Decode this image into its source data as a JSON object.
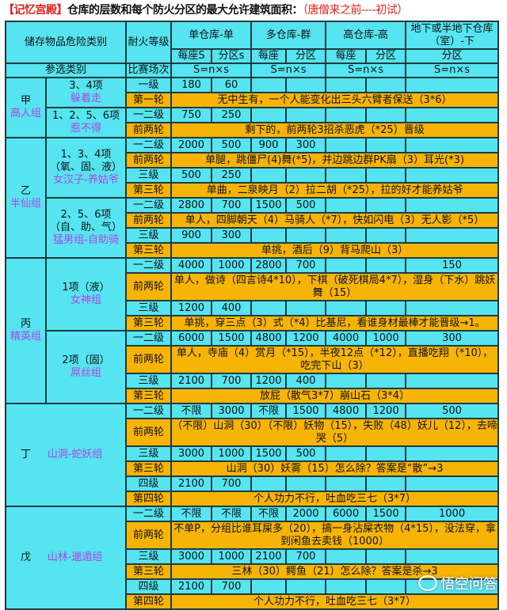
{
  "title": {
    "prefix": "【记忆宫殿】",
    "main": "仓库的层数和每个防火分区的最大允许建筑面积：",
    "suffix": "（唐僧来之前----初试）"
  },
  "header": {
    "category": "储存物品危险类别",
    "fire_rating": "耐火等级",
    "single": "单仓库-单",
    "multi": "多仓库-群",
    "high": "高仓库-高",
    "underground": "地下或半地下仓库（室）-下",
    "per_building_s": "每座S",
    "zone_s": "分区s",
    "per_building": "每座",
    "zone": "分区",
    "participants": "参选类别",
    "match": "比赛场次",
    "formula": "S=n×s"
  },
  "groups": [
    {
      "name": "甲",
      "alias": "高人组",
      "subgroups": [
        {
          "items": "3、4项",
          "alias": "躲着走",
          "rows": [
            {
              "level": "一级",
              "values": [
                "180",
                "60",
                "",
                "",
                "",
                "",
                ""
              ]
            },
            {
              "level": "第一轮",
              "note": "无中生有，一个人能变化出三头六臂者保送（3*6）"
            }
          ]
        },
        {
          "items": "1、2、5、6项",
          "alias": "惹不得",
          "rows": [
            {
              "level": "一二级",
              "values": [
                "750",
                "250",
                "",
                "",
                "",
                "",
                ""
              ]
            },
            {
              "level": "前两轮",
              "note": "剩下的，前两轮3招杀恶虎（*25）晋级"
            }
          ]
        }
      ]
    },
    {
      "name": "乙",
      "alias": "半仙组",
      "subgroups": [
        {
          "items": "1、3、4项\n（氧、固、液）",
          "alias": "女汉子-养姑爷",
          "rows": [
            {
              "level": "一二级",
              "values": [
                "2000",
                "500",
                "900",
                "300",
                "",
                "",
                ""
              ]
            },
            {
              "level": "前两轮",
              "note": "单腿，跳僵尸(4)舞(*5)，并边跳边群PK扇（3）耳光(*3)"
            },
            {
              "level": "三级",
              "values": [
                "500",
                "250",
                "",
                "",
                "",
                "",
                ""
              ]
            },
            {
              "level": "第三轮",
              "note": "单曲，二泉映月（2）拉二胡（*25），拉的好才能养姑爷"
            }
          ]
        },
        {
          "items": "2、5、6项\n（自、助、气）",
          "alias": "猛男组-自助骑",
          "rows": [
            {
              "level": "一二级",
              "values": [
                "2800",
                "700",
                "1500",
                "500",
                "",
                "",
                ""
              ]
            },
            {
              "level": "前两轮",
              "note": "单人，四脚朝天（4）马骑人（*7），快如闪电（3）无人影（*5）"
            },
            {
              "level": "三级",
              "values": [
                "900",
                "300",
                "",
                "",
                "",
                "",
                ""
              ]
            },
            {
              "level": "第三轮",
              "note": "单挑，酒后（9）背马爬山（3）"
            }
          ]
        }
      ]
    },
    {
      "name": "丙",
      "alias": "精英组",
      "subgroups": [
        {
          "items": "1项（液）",
          "alias": "女神组",
          "rows": [
            {
              "level": "一二级",
              "values": [
                "4000",
                "1000",
                "2800",
                "700",
                "",
                "",
                "150"
              ]
            },
            {
              "level": "前两轮",
              "note": "单人，做诗（四言诗4*10），下棋（破死棋局4*7），湿身（下水）跳妖舞（15）",
              "tall": true
            },
            {
              "level": "三级",
              "values": [
                "1200",
                "400",
                "",
                "",
                "",
                "",
                ""
              ]
            },
            {
              "level": "第三轮",
              "note": "单挑，穿三点（3）式（*4）比基尼，看谁身材最棒才能晋级→1。"
            }
          ]
        },
        {
          "items": "2项（固）",
          "alias": "屌丝组",
          "rows": [
            {
              "level": "一二级",
              "values": [
                "6000",
                "1500",
                "4800",
                "1200",
                "4000",
                "1000",
                "300"
              ]
            },
            {
              "level": "前两轮",
              "note": "单人，寺庙（4）赏月（*15），半夜12点（*12），直播吃翔（*10），吃完下山（3）",
              "tall": true
            },
            {
              "level": "三级",
              "values": [
                "2100",
                "700",
                "1200",
                "400",
                "",
                "",
                ""
              ]
            },
            {
              "level": "第三轮",
              "note": "放屁（散气3*7）崩山石（3*4）"
            }
          ]
        }
      ]
    },
    {
      "name": "丁",
      "alias": "山洞-蛇妖组",
      "merged": true,
      "subgroups": [
        {
          "rows": [
            {
              "level": "一二级",
              "values": [
                "不限",
                "3000",
                "不限",
                "1500",
                "4800",
                "1200",
                "500"
              ]
            },
            {
              "level": "前两轮",
              "note": "（不限）山洞（30）（不限）妖物（15），失败（48）妖儿（12），去啼哭（5）",
              "tall": true
            },
            {
              "level": "三级",
              "values": [
                "3000",
                "1000",
                "1500",
                "500",
                "",
                "",
                ""
              ]
            },
            {
              "level": "第三轮",
              "note": "山洞（30）妖雾（15）怎么除？答案是“散”→3"
            },
            {
              "level": "四级",
              "values": [
                "2100",
                "700",
                "",
                "",
                "",
                "",
                ""
              ]
            },
            {
              "level": "第四轮",
              "note": "个人功力不行，吐血吃三七（3*7）"
            }
          ]
        }
      ]
    },
    {
      "name": "戊",
      "alias": "山林-邋遢组",
      "merged": true,
      "subgroups": [
        {
          "rows": [
            {
              "level": "一二级",
              "values": [
                "不限",
                "不限",
                "不限",
                "2000",
                "6000",
                "1500",
                "1000"
              ]
            },
            {
              "level": "前两轮",
              "note": "不单P，分组比谁耳屎多（20），搞一身沾屎衣物（4*15），没法穿，拿到闲鱼去卖钱（1000）",
              "tall": true
            },
            {
              "level": "三级",
              "values": [
                "3000",
                "1000",
                "2100",
                "700",
                "",
                "",
                ""
              ]
            },
            {
              "level": "第三轮",
              "note": "三林（30）鳄鱼（21）怎么除？答案是杀→3"
            },
            {
              "level": "四级",
              "values": [
                "2100",
                "700",
                "",
                "",
                "",
                "",
                ""
              ]
            },
            {
              "level": "第四轮",
              "note": "个人功力不行，吐血吃三七（3*7）"
            }
          ]
        }
      ]
    }
  ],
  "watermark": "悟空问答",
  "colors": {
    "cyan": "#55e4f0",
    "orange": "#f7b407",
    "purple": "#b443e6",
    "red": "#e0201b"
  }
}
